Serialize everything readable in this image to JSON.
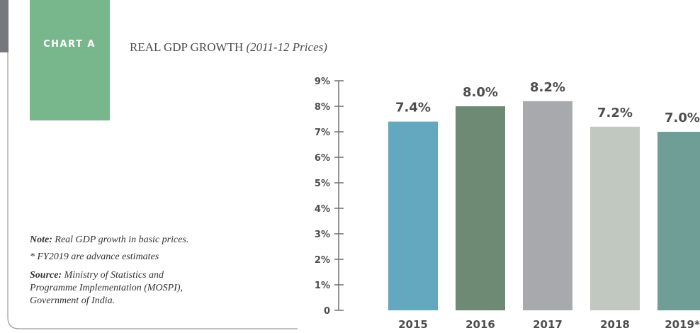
{
  "chart_data": {
    "type": "bar",
    "tag": "CHART A",
    "title": "REAL GDP GROWTH",
    "subtitle": "(2011-12 Prices)",
    "categories": [
      "2015",
      "2016",
      "2017",
      "2018",
      "2019*"
    ],
    "values": [
      7.4,
      8.0,
      8.2,
      7.2,
      7.0
    ],
    "value_labels": [
      "7.4%",
      "8.0%",
      "8.2%",
      "7.2%",
      "7.0%"
    ],
    "colors": [
      "#64a8c0",
      "#6e8a74",
      "#a7a9ac",
      "#c0c8c0",
      "#6f9e97"
    ],
    "ylim": [
      0,
      9
    ],
    "yticks": [
      0,
      {
        "value": 1,
        "label": "1%"
      },
      {
        "value": 2,
        "label": "2%"
      },
      {
        "value": 3,
        "label": "3%"
      },
      {
        "value": 4,
        "label": "4%"
      },
      {
        "value": 5,
        "label": "5%"
      },
      {
        "value": 6,
        "label": "6%"
      },
      {
        "value": 7,
        "label": "7%"
      },
      {
        "value": 8,
        "label": "8%"
      },
      {
        "value": 9,
        "label": "9%"
      }
    ],
    "note": {
      "label": "Note:",
      "text": "Real GDP growth in basic prices."
    },
    "footnote": "* FY2019 are advance estimates",
    "source": {
      "label": "Source:",
      "lines": [
        "Ministry of Statistics and",
        "Programme Implementation (MOSPI),",
        "Government of India."
      ]
    }
  }
}
